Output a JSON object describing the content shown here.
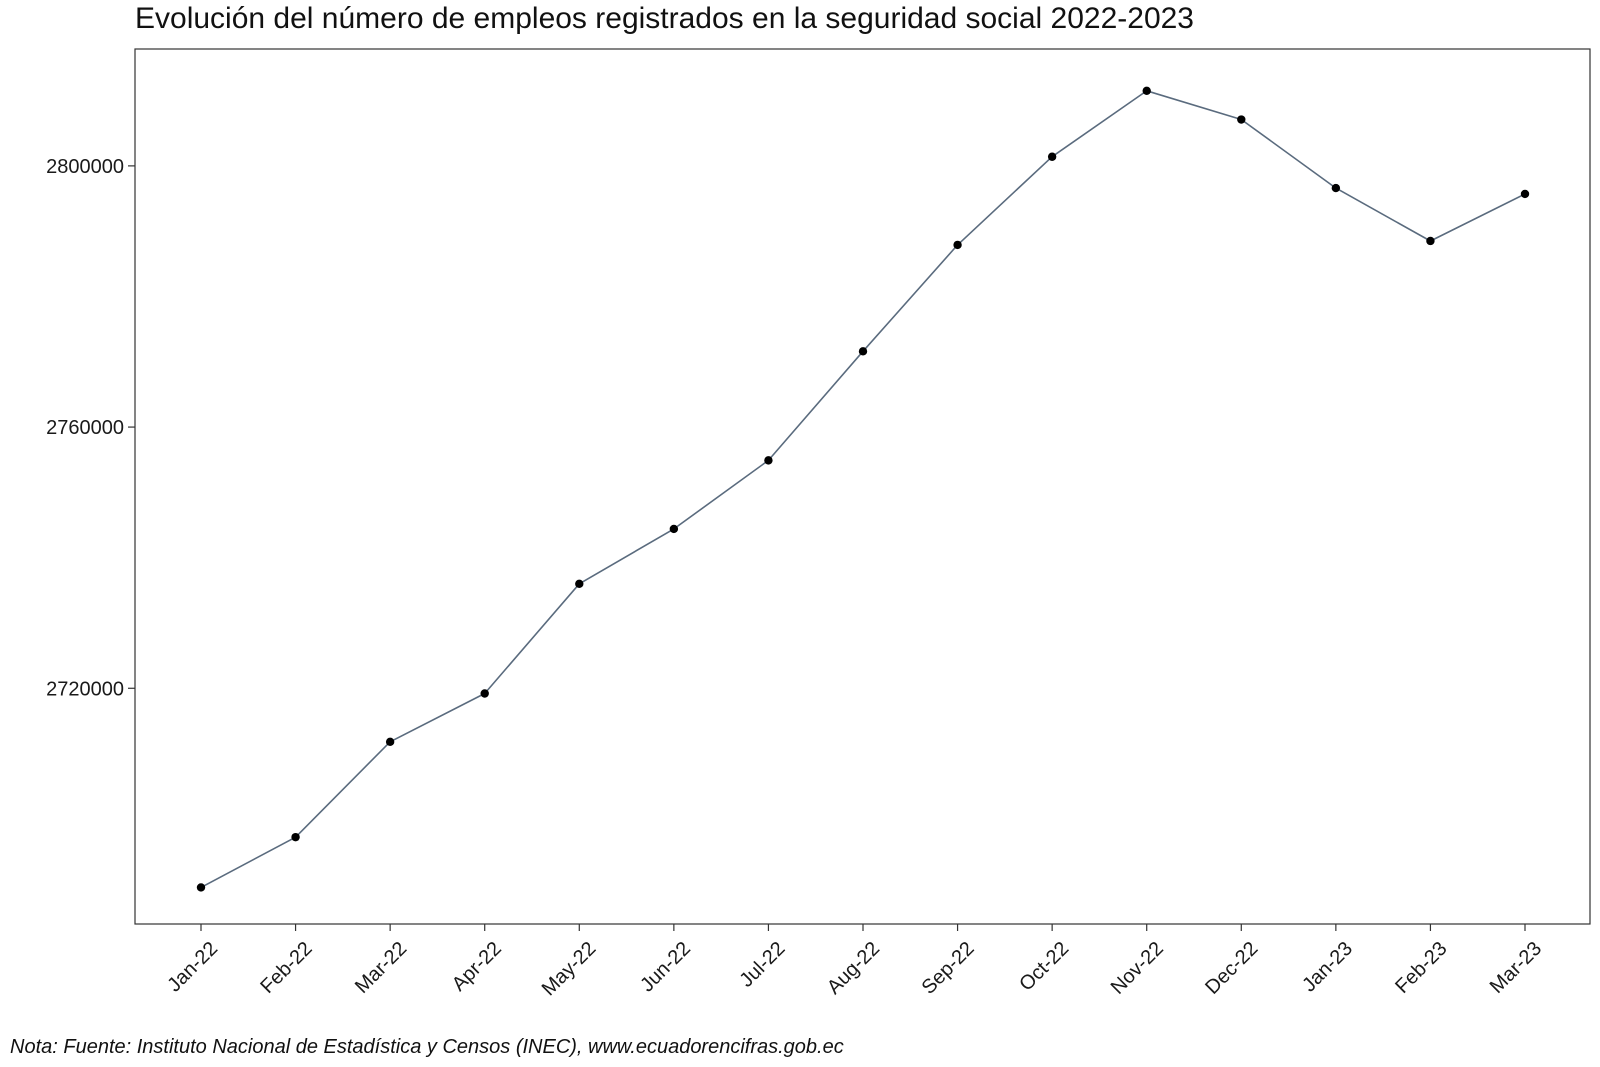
{
  "chart_data": {
    "type": "line",
    "title": "Evolución del número de empleos registrados en la seguridad social 2022-2023",
    "xlabel": "",
    "ylabel": "",
    "categories": [
      "Jan-22",
      "Feb-22",
      "Mar-22",
      "Apr-22",
      "May-22",
      "Jun-22",
      "Jul-22",
      "Aug-22",
      "Sep-22",
      "Oct-22",
      "Nov-22",
      "Dec-22",
      "Jan-23",
      "Feb-23",
      "Mar-23"
    ],
    "series": [
      {
        "values": [
          2689500,
          2697200,
          2711800,
          2719200,
          2736000,
          2744400,
          2754900,
          2771600,
          2787900,
          2801400,
          2811500,
          2807100,
          2796600,
          2788500,
          2795700
        ]
      }
    ],
    "yticks": [
      2720000,
      2760000,
      2800000
    ],
    "ytick_labels": [
      "2720000",
      "2760000",
      "2800000"
    ],
    "ylim": [
      2683900,
      2817900
    ],
    "grid": false,
    "legend": "none",
    "line_color": "#5a6b7e",
    "point_color": "#000000"
  },
  "footnote": "Nota: Fuente: Instituto Nacional de Estadística y Censos (INEC), www.ecuadorencifras.gob.ec"
}
